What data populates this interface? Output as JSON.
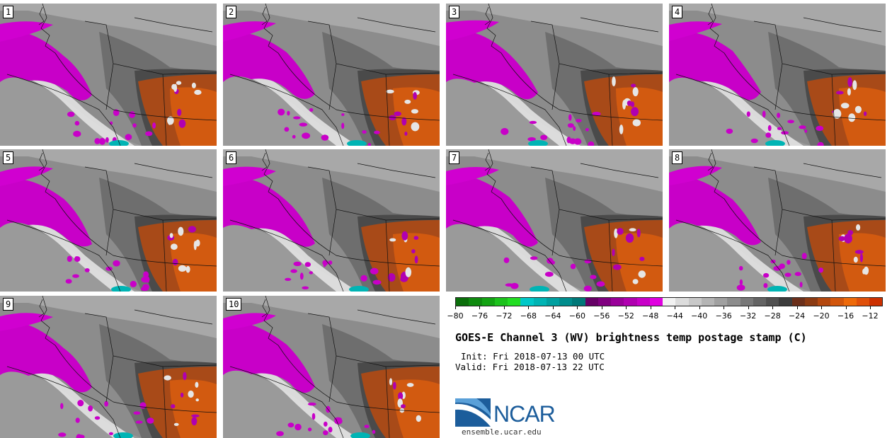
{
  "panels": [
    {
      "label": "1"
    },
    {
      "label": "2"
    },
    {
      "label": "3"
    },
    {
      "label": "4"
    },
    {
      "label": "5"
    },
    {
      "label": "6"
    },
    {
      "label": "7"
    },
    {
      "label": "8"
    },
    {
      "label": "9"
    },
    {
      "label": "10"
    }
  ],
  "colorbar": {
    "colors": [
      "#0a6e0a",
      "#0f8a0f",
      "#13a313",
      "#1cc21c",
      "#22dd22",
      "#00c8c8",
      "#00b4b4",
      "#00a0a0",
      "#008c8c",
      "#007878",
      "#660066",
      "#800080",
      "#990099",
      "#b000b0",
      "#c800c8",
      "#e000e0",
      "#f2f2f2",
      "#dcdcdc",
      "#c8c8c8",
      "#b4b4b4",
      "#a0a0a0",
      "#8c8c8c",
      "#787878",
      "#646464",
      "#505050",
      "#3c3c3c",
      "#6b2f1a",
      "#8b3a12",
      "#b4480f",
      "#d2560c",
      "#ee6a0a",
      "#e0500a",
      "#cc3000"
    ],
    "tick_labels": [
      "−80",
      "−76",
      "−72",
      "−68",
      "−64",
      "−60",
      "−56",
      "−52",
      "−48",
      "−44",
      "−40",
      "−36",
      "−32",
      "−28",
      "−24",
      "−20",
      "−16",
      "−12"
    ],
    "min": -80,
    "max": -10
  },
  "title": "GOES-E Channel 3 (WV) brightness temp postage stamp (C)",
  "init_line": "Init: Fri 2018-07-13 00 UTC",
  "valid_line": "Valid: Fri 2018-07-13 22 UTC",
  "logo": {
    "name": "NCAR",
    "url": "ensemble.ucar.edu"
  }
}
